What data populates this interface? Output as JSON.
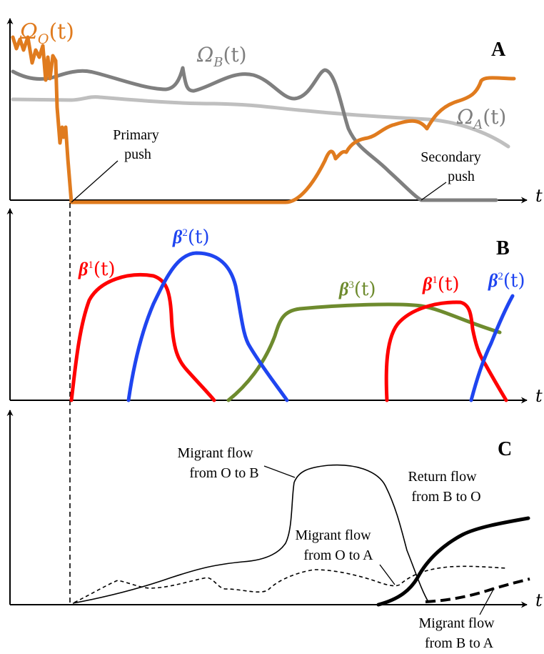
{
  "axis_label": "t",
  "colors": {
    "omega_O": "#E07B1E",
    "omega_B": "#7F7F7F",
    "omega_A": "#BFBFBF",
    "beta1": "#FF0000",
    "beta2": "#1F45F0",
    "beta3": "#6E8B2E"
  },
  "panel_A": {
    "letter": "A",
    "curves": {
      "omega_O": {
        "sym": "Ω",
        "sub": "O",
        "arg": "(t)"
      },
      "omega_B": {
        "sym": "Ω",
        "sub": "B",
        "arg": "(t)"
      },
      "omega_A": {
        "sym": "Ω",
        "sub": "A",
        "arg": "(t)"
      }
    },
    "annotations": {
      "primary_line1": "Primary",
      "primary_line2": "push",
      "secondary_line1": "Secondary",
      "secondary_line2": "push"
    }
  },
  "panel_B": {
    "letter": "B",
    "labels": {
      "beta1_first": {
        "sym": "β",
        "sup": "1",
        "arg": "(t)"
      },
      "beta2_first": {
        "sym": "β",
        "sup": "2",
        "arg": "(t)"
      },
      "beta3": {
        "sym": "β",
        "sup": "3",
        "arg": "(t)"
      },
      "beta1_second": {
        "sym": "β",
        "sup": "1",
        "arg": "(t)"
      },
      "beta2_second": {
        "sym": "β",
        "sup": "2",
        "arg": "(t)"
      }
    }
  },
  "panel_C": {
    "letter": "C",
    "annotations": {
      "ob_line1": "Migrant flow",
      "ob_line2": "from O to B",
      "return_line1": "Return flow",
      "return_line2": "from B to O",
      "oa_line1": "Migrant flow",
      "oa_line2": "from O to A",
      "ba_line1": "Migrant flow",
      "ba_line2": "from B to A"
    }
  }
}
